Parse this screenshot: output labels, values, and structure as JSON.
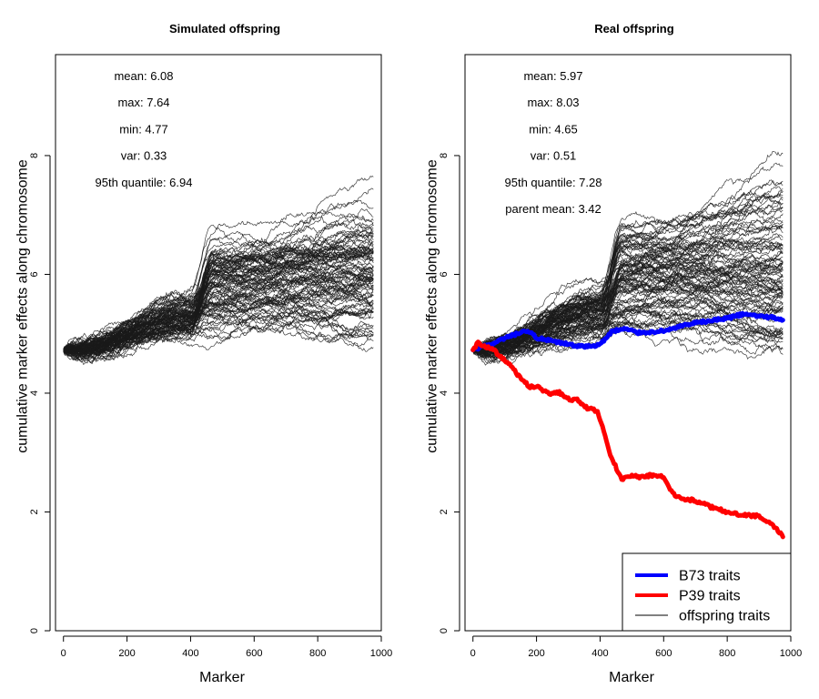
{
  "chart_data": [
    {
      "type": "line",
      "title": "Simulated offspring",
      "xlabel": "Marker",
      "ylabel": "cumulative marker effects along chromosome",
      "xlim": [
        -25,
        1000
      ],
      "ylim": [
        0,
        9.7
      ],
      "xticks": [
        0,
        200,
        400,
        600,
        800,
        1000
      ],
      "yticks": [
        0,
        2,
        4,
        6,
        8
      ],
      "stats": [
        "mean: 6.08",
        "max: 7.64",
        "min: 4.77",
        "var: 0.33",
        "95th quantile: 6.94"
      ],
      "offspring_lines": 100,
      "start_value": 4.72,
      "end_mean": 6.08,
      "end_max": 7.64,
      "end_min": 4.77,
      "x_end": 975,
      "line_color": "#1a1a1a",
      "series": [],
      "legend": null
    },
    {
      "type": "line",
      "title": "Real offspring",
      "xlabel": "Marker",
      "ylabel": "cumulative marker effects along chromosome",
      "xlim": [
        -25,
        1000
      ],
      "ylim": [
        0,
        9.7
      ],
      "xticks": [
        0,
        200,
        400,
        600,
        800,
        1000
      ],
      "yticks": [
        0,
        2,
        4,
        6,
        8
      ],
      "stats": [
        "mean: 5.97",
        "max: 8.03",
        "min: 4.65",
        "var: 0.51",
        "95th quantile: 7.28",
        "parent mean: 3.42"
      ],
      "offspring_lines": 100,
      "start_value": 4.72,
      "end_mean": 5.97,
      "end_max": 8.03,
      "end_min": 4.65,
      "x_end": 975,
      "line_color": "#1a1a1a",
      "series": [
        {
          "name": "B73 traits",
          "color": "#0000ff",
          "x": [
            0,
            30,
            60,
            100,
            150,
            180,
            200,
            250,
            300,
            350,
            380,
            400,
            440,
            480,
            520,
            560,
            600,
            650,
            700,
            750,
            800,
            850,
            880,
            920,
            960,
            975
          ],
          "values": [
            4.72,
            4.78,
            4.82,
            4.92,
            5.02,
            5.03,
            4.93,
            4.87,
            4.82,
            4.78,
            4.8,
            4.82,
            5.05,
            5.08,
            5.02,
            5.03,
            5.05,
            5.12,
            5.18,
            5.22,
            5.26,
            5.33,
            5.31,
            5.29,
            5.26,
            5.23
          ]
        },
        {
          "name": "P39 traits",
          "color": "#ff0000",
          "x": [
            0,
            15,
            30,
            60,
            90,
            120,
            150,
            180,
            200,
            240,
            270,
            300,
            330,
            360,
            390,
            410,
            430,
            450,
            470,
            500,
            530,
            560,
            600,
            630,
            660,
            690,
            720,
            750,
            800,
            850,
            900,
            950,
            975
          ],
          "values": [
            4.72,
            4.85,
            4.8,
            4.75,
            4.6,
            4.45,
            4.25,
            4.1,
            4.12,
            3.98,
            4.02,
            3.9,
            3.88,
            3.75,
            3.7,
            3.4,
            3.0,
            2.75,
            2.55,
            2.62,
            2.58,
            2.62,
            2.6,
            2.3,
            2.22,
            2.2,
            2.15,
            2.08,
            2.0,
            1.95,
            1.93,
            1.75,
            1.58
          ]
        }
      ],
      "legend": {
        "position": "bottom-right",
        "entries": [
          {
            "label": "B73 traits",
            "color": "#0000ff",
            "width": "thick"
          },
          {
            "label": "P39 traits",
            "color": "#ff0000",
            "width": "thick"
          },
          {
            "label": "offspring traits",
            "color": "#000000",
            "width": "thin"
          }
        ]
      }
    }
  ]
}
